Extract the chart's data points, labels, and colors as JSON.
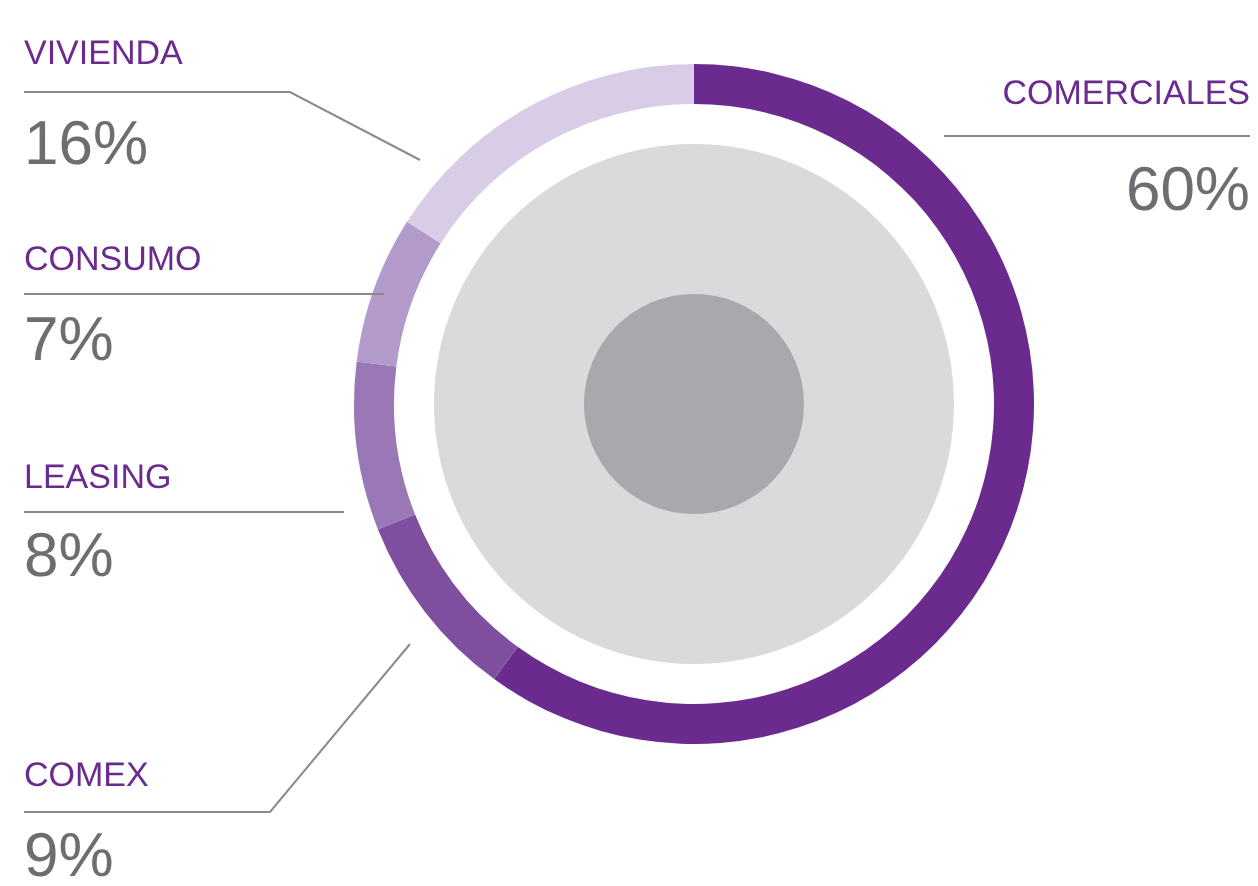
{
  "chart_data": {
    "type": "donut",
    "categories": [
      "COMERCIALES",
      "COMEX",
      "LEASING",
      "CONSUMO",
      "VIVIENDA"
    ],
    "values": [
      60,
      9,
      8,
      7,
      16
    ],
    "value_labels": [
      "60%",
      "9%",
      "8%",
      "7%",
      "16%"
    ],
    "colors": [
      "#6a2a8e",
      "#7d4f9e",
      "#9a78b5",
      "#b29bcb",
      "#d9cce6"
    ]
  }
}
